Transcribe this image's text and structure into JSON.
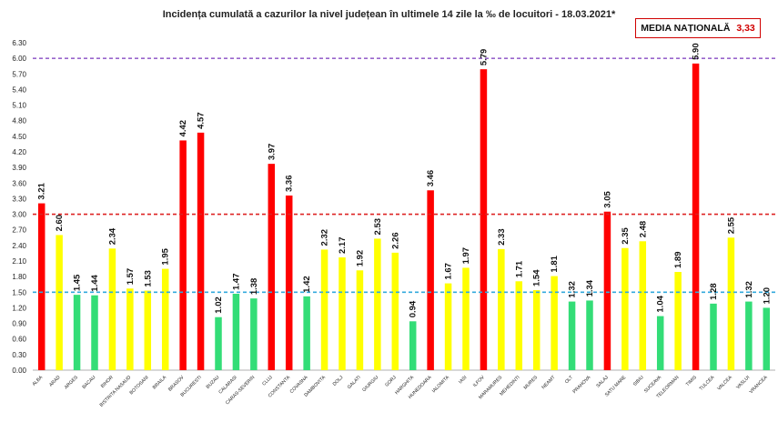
{
  "title": "Incidența cumulată a cazurilor la nivel județean în ultimele 14 zile la ‰ de locuitori - 18.03.2021*",
  "media": {
    "label": "MEDIA NAȚIONALĂ",
    "value": "3,33"
  },
  "colors": {
    "red": "#ff0000",
    "yellow": "#ffff00",
    "green": "#33dd77",
    "purple_line": "#9966cc",
    "red_line": "#dd2222",
    "blue_line": "#33aadd"
  },
  "chart_data": {
    "type": "bar",
    "title": "Incidența cumulată a cazurilor la nivel județean în ultimele 14 zile la ‰ de locuitori - 18.03.2021*",
    "xlabel": "",
    "ylabel": "",
    "ylim": [
      0,
      6.3
    ],
    "yticks": [
      "0.00",
      "0.30",
      "0.60",
      "0.90",
      "1.20",
      "1.50",
      "1.80",
      "2.10",
      "2.40",
      "2.70",
      "3.00",
      "3.30",
      "3.60",
      "3.90",
      "4.20",
      "4.50",
      "4.80",
      "5.10",
      "5.40",
      "5.70",
      "6.00",
      "6.30"
    ],
    "reference_lines": [
      {
        "value": 6.0,
        "color": "purple",
        "style": "dashed"
      },
      {
        "value": 3.0,
        "color": "red",
        "style": "dashed"
      },
      {
        "value": 1.5,
        "color": "blue",
        "style": "dashed"
      }
    ],
    "categories": [
      "ALBA",
      "ARAD",
      "ARGES",
      "BACAU",
      "BIHOR",
      "BISTRITA NASAUD",
      "BOTOSANI",
      "BRAILA",
      "BRASOV",
      "BUCURESTI",
      "BUZAU",
      "CALARASI",
      "CARAS-SEVERIN",
      "CLUJ",
      "CONSTANTA",
      "COVASNA",
      "DAMBOVITA",
      "DOLJ",
      "GALATI",
      "GIURGIU",
      "GORJ",
      "HARGHITA",
      "HUNEDOARA",
      "IALOMITA",
      "IASI",
      "ILFOV",
      "MARAMURES",
      "MEHEDINTI",
      "MURES",
      "NEAMT",
      "OLT",
      "PRAHOVA",
      "SALAJ",
      "SATU MARE",
      "SIBIU",
      "SUCEAVA",
      "TELEORMAN",
      "TIMIS",
      "TULCEA",
      "VALCEA",
      "VASLUI",
      "VRANCEA"
    ],
    "values": [
      3.21,
      2.6,
      1.45,
      1.44,
      2.34,
      1.57,
      1.53,
      1.95,
      4.42,
      4.57,
      1.02,
      1.47,
      1.38,
      3.97,
      3.36,
      1.42,
      2.32,
      2.17,
      1.92,
      2.53,
      2.26,
      0.94,
      3.46,
      1.67,
      1.97,
      5.79,
      2.33,
      1.71,
      1.54,
      1.81,
      1.32,
      1.34,
      3.05,
      2.35,
      2.48,
      1.04,
      1.89,
      5.9,
      1.28,
      2.55,
      1.32,
      1.2
    ],
    "labels": [
      "3.21",
      "2.60",
      "1.45",
      "1.44",
      "2.34",
      "1.57",
      "1.53",
      "1.95",
      "4.42",
      "4.57",
      "1.02",
      "1.47",
      "1.38",
      "3.97",
      "3.36",
      "1.42",
      "2.32",
      "2.17",
      "1.92",
      "2.53",
      "2.26",
      "0.94",
      "3.46",
      "1.67",
      "1.97",
      "5.79",
      "2.33",
      "1.71",
      "1.54",
      "1.81",
      "1.32",
      "1.34",
      "3.05",
      "2.35",
      "2.48",
      "1.04",
      "1.89",
      "5.90",
      "1.28",
      "2.55",
      "1.32",
      "1.20"
    ]
  }
}
